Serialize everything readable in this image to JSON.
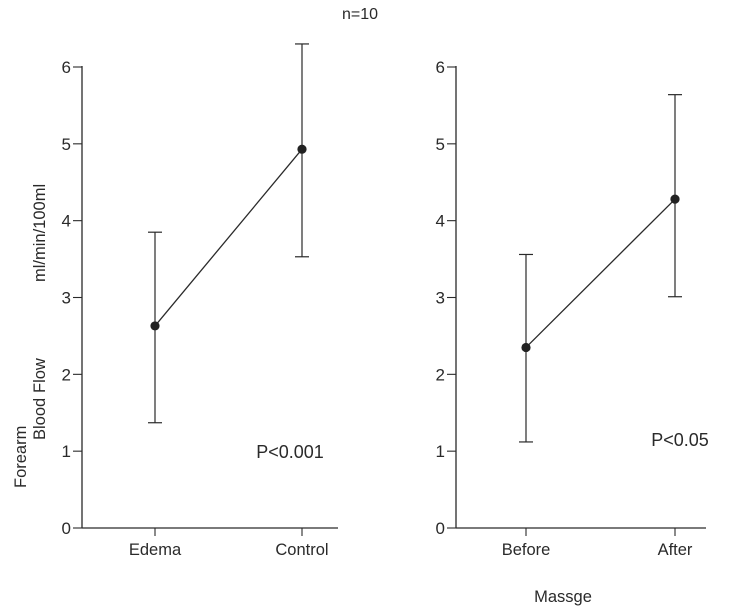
{
  "header": {
    "n_label": "n=10"
  },
  "ylabel": {
    "line1": "Forearm",
    "line2": "Blood",
    "line3": "Flow",
    "units": "ml/min/100ml"
  },
  "chart_data": [
    {
      "type": "line",
      "categories": [
        "Edema",
        "Control"
      ],
      "values": [
        2.63,
        4.93
      ],
      "error_low": [
        1.37,
        3.53
      ],
      "error_high": [
        3.85,
        6.3
      ],
      "ylim": [
        0,
        6
      ],
      "yticks": [
        "0",
        "1",
        "2",
        "3",
        "4",
        "5",
        "6"
      ],
      "annotation": "P<0.001",
      "xlabel": ""
    },
    {
      "type": "line",
      "categories": [
        "Before",
        "After"
      ],
      "values": [
        2.35,
        4.28
      ],
      "error_low": [
        1.12,
        3.01
      ],
      "error_high": [
        3.56,
        5.64
      ],
      "ylim": [
        0,
        6
      ],
      "yticks": [
        "0",
        "1",
        "2",
        "3",
        "4",
        "5",
        "6"
      ],
      "annotation": "P<0.05",
      "xlabel": "Massge"
    }
  ]
}
